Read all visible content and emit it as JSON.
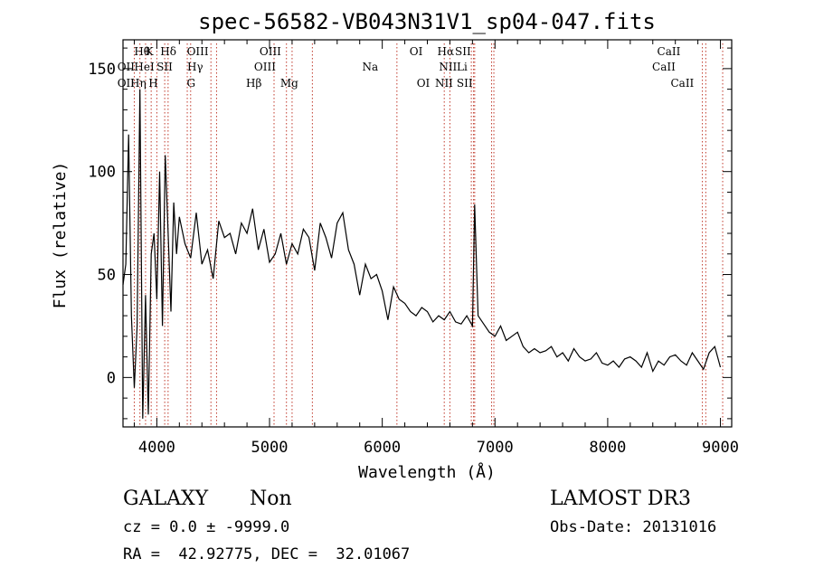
{
  "chart_data": {
    "type": "line",
    "title": "spec-56582-VB043N31V1_sp04-047.fits",
    "xlabel": "Wavelength (Å)",
    "ylabel": "Flux (relative)",
    "xlim": [
      3700,
      9100
    ],
    "ylim": [
      -24,
      164
    ],
    "x_ticks": [
      4000,
      5000,
      6000,
      7000,
      8000,
      9000
    ],
    "y_ticks": [
      0,
      50,
      100,
      150
    ],
    "grid": false,
    "series": [
      {
        "color": "#000000",
        "x": [
          3700,
          3725,
          3750,
          3775,
          3800,
          3825,
          3850,
          3875,
          3900,
          3925,
          3950,
          3975,
          4000,
          4025,
          4050,
          4075,
          4100,
          4125,
          4150,
          4175,
          4200,
          4250,
          4300,
          4350,
          4400,
          4450,
          4500,
          4550,
          4600,
          4650,
          4700,
          4750,
          4800,
          4850,
          4900,
          4950,
          5000,
          5050,
          5100,
          5150,
          5200,
          5250,
          5300,
          5350,
          5400,
          5450,
          5500,
          5550,
          5600,
          5650,
          5700,
          5750,
          5800,
          5850,
          5900,
          5950,
          6000,
          6050,
          6100,
          6150,
          6200,
          6250,
          6300,
          6350,
          6400,
          6450,
          6500,
          6550,
          6600,
          6650,
          6700,
          6750,
          6800,
          6820,
          6850,
          6900,
          6950,
          7000,
          7050,
          7100,
          7150,
          7200,
          7250,
          7300,
          7350,
          7400,
          7450,
          7500,
          7550,
          7600,
          7650,
          7700,
          7750,
          7800,
          7850,
          7900,
          7950,
          8000,
          8050,
          8100,
          8150,
          8200,
          8250,
          8300,
          8350,
          8400,
          8450,
          8500,
          8550,
          8600,
          8650,
          8700,
          8750,
          8800,
          8850,
          8900,
          8950,
          9000
        ],
        "y": [
          45,
          55,
          118,
          30,
          -5,
          25,
          140,
          -20,
          40,
          -18,
          60,
          70,
          38,
          100,
          25,
          108,
          70,
          32,
          85,
          60,
          78,
          65,
          58,
          80,
          55,
          62,
          48,
          76,
          68,
          70,
          60,
          75,
          70,
          82,
          62,
          72,
          56,
          60,
          70,
          55,
          65,
          60,
          72,
          68,
          52,
          75,
          68,
          58,
          75,
          80,
          62,
          55,
          40,
          55,
          48,
          50,
          42,
          28,
          44,
          38,
          36,
          32,
          30,
          34,
          32,
          27,
          30,
          28,
          32,
          27,
          26,
          30,
          25,
          84,
          30,
          26,
          22,
          20,
          25,
          18,
          20,
          22,
          15,
          12,
          14,
          12,
          13,
          15,
          10,
          12,
          8,
          14,
          10,
          8,
          9,
          12,
          7,
          6,
          8,
          5,
          9,
          10,
          8,
          5,
          12,
          3,
          8,
          6,
          10,
          11,
          8,
          6,
          12,
          8,
          4,
          12,
          15,
          5
        ]
      }
    ],
    "lines_top": [
      {
        "label": "Hθ",
        "x": 3870
      },
      {
        "label": "K",
        "x": 3934
      },
      {
        "label": "Hδ",
        "x": 4102
      },
      {
        "label": "OIII",
        "x": 4363
      },
      {
        "label": "OIII",
        "x": 5007
      },
      {
        "label": "OI",
        "x": 6300
      },
      {
        "label": "Hα",
        "x": 6563
      },
      {
        "label": "SII",
        "x": 6716
      },
      {
        "label": "CaII",
        "x": 8542
      }
    ],
    "lines_mid": [
      {
        "label": "OII",
        "x": 3727
      },
      {
        "label": "HeI",
        "x": 3889
      },
      {
        "label": "SII",
        "x": 4069
      },
      {
        "label": "Hγ",
        "x": 4340
      },
      {
        "label": "OIII",
        "x": 4959
      },
      {
        "label": "Na",
        "x": 5893
      },
      {
        "label": "NII",
        "x": 6583
      },
      {
        "label": "Li",
        "x": 6708
      },
      {
        "label": "CaII",
        "x": 8498
      }
    ],
    "lines_bot": [
      {
        "label": "OII",
        "x": 3727
      },
      {
        "label": "Hη",
        "x": 3835
      },
      {
        "label": "H",
        "x": 3969
      },
      {
        "label": "G",
        "x": 4304
      },
      {
        "label": "Hβ",
        "x": 4861
      },
      {
        "label": "Mg",
        "x": 5175
      },
      {
        "label": "OI",
        "x": 6364
      },
      {
        "label": "NII",
        "x": 6548
      },
      {
        "label": "SII",
        "x": 6731
      },
      {
        "label": "CaII",
        "x": 8662
      }
    ],
    "marker_lines_x": [
      3800,
      3850,
      3900,
      3950,
      4000,
      4070,
      4100,
      4270,
      4300,
      4480,
      4530,
      5040,
      5150,
      5200,
      5380,
      6130,
      6550,
      6600,
      6790,
      6810,
      6820,
      6970,
      6990,
      8840,
      8870,
      9020
    ]
  },
  "info": {
    "class_label": "GALAXY",
    "subclass_label": "Non",
    "survey_label": "LAMOST DR3",
    "cz_line": "cz = 0.0 ± -9999.0",
    "obs_date_line": "Obs-Date: 20131016",
    "radec_line": "RA =  42.92775, DEC =  32.01067"
  }
}
